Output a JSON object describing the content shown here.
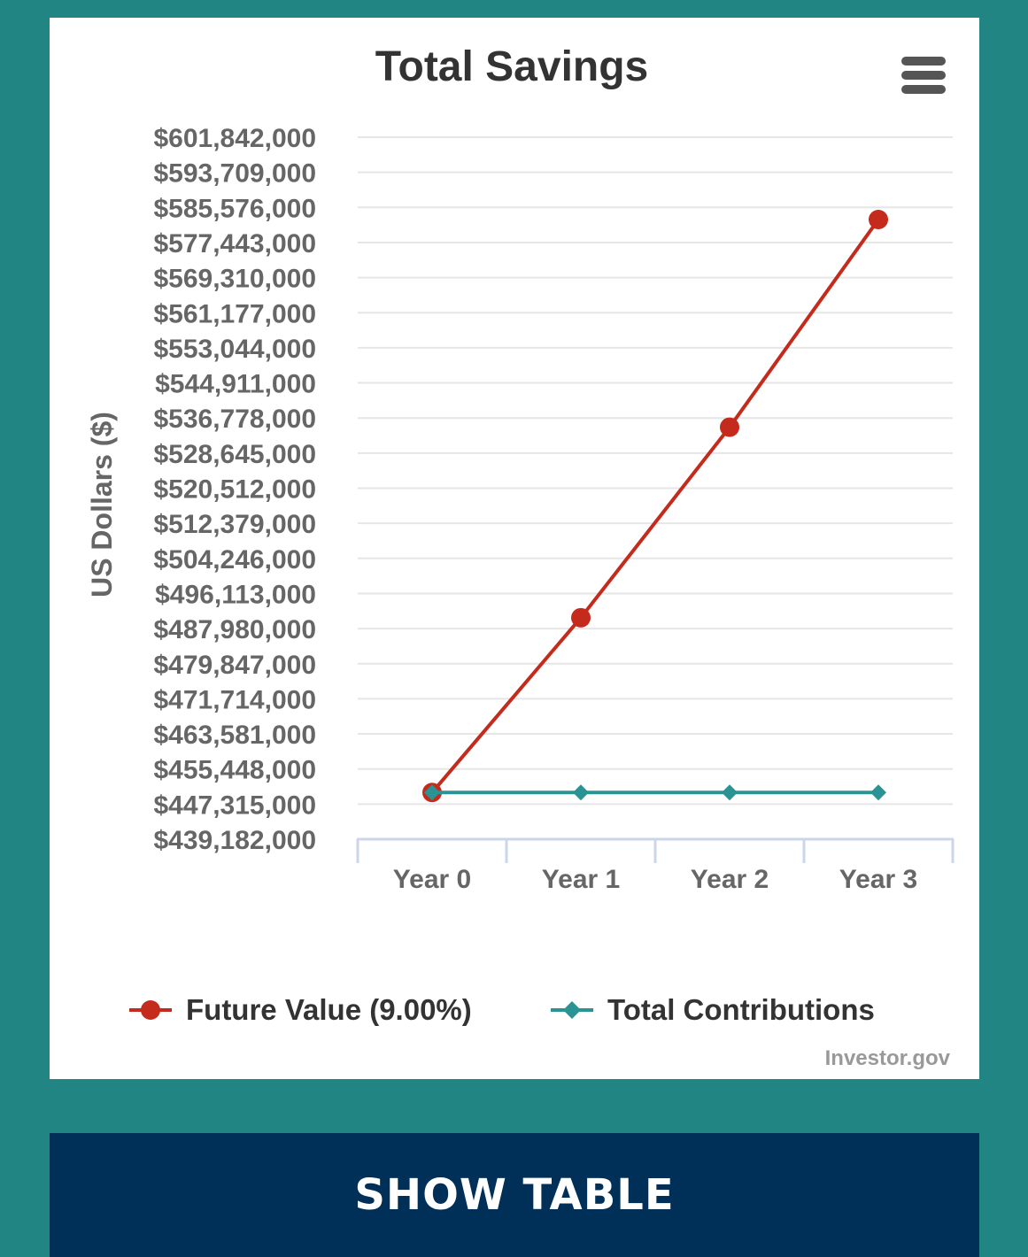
{
  "chart_data": {
    "type": "line",
    "title": "Total Savings",
    "ylabel": "US Dollars ($)",
    "xlabel": "",
    "categories": [
      "Year 0",
      "Year 1",
      "Year 2",
      "Year 3"
    ],
    "yticks": [
      439182000,
      447315000,
      455448000,
      463581000,
      471714000,
      479847000,
      487980000,
      496113000,
      504246000,
      512379000,
      520512000,
      528645000,
      536778000,
      544911000,
      553044000,
      561177000,
      569310000,
      577443000,
      585576000,
      593709000,
      601842000
    ],
    "ytick_labels": [
      "$439,182,000",
      "$447,315,000",
      "$455,448,000",
      "$463,581,000",
      "$471,714,000",
      "$479,847,000",
      "$487,980,000",
      "$496,113,000",
      "$504,246,000",
      "$512,379,000",
      "$520,512,000",
      "$528,645,000",
      "$536,778,000",
      "$544,911,000",
      "$553,044,000",
      "$561,177,000",
      "$569,310,000",
      "$577,443,000",
      "$585,576,000",
      "$593,709,000",
      "$601,842,000"
    ],
    "ylim": [
      439182000,
      601842000
    ],
    "grid": true,
    "legend_position": "bottom",
    "series": [
      {
        "name": "Future Value (9.00%)",
        "color": "#c42b1c",
        "marker": "circle",
        "values": [
          450000000,
          490500000,
          534645000,
          582763050
        ]
      },
      {
        "name": "Total Contributions",
        "color": "#2a9495",
        "marker": "diamond",
        "values": [
          450000000,
          450000000,
          450000000,
          450000000
        ]
      }
    ],
    "credit": "Investor.gov"
  },
  "menu": {
    "icon": "hamburger-menu-icon"
  },
  "show_table": {
    "label": "SHOW TABLE"
  },
  "colors": {
    "page_background": "#218584",
    "button_background": "#003057",
    "axis_line": "#ccd6eb",
    "grid_line": "#e6e6e6"
  }
}
